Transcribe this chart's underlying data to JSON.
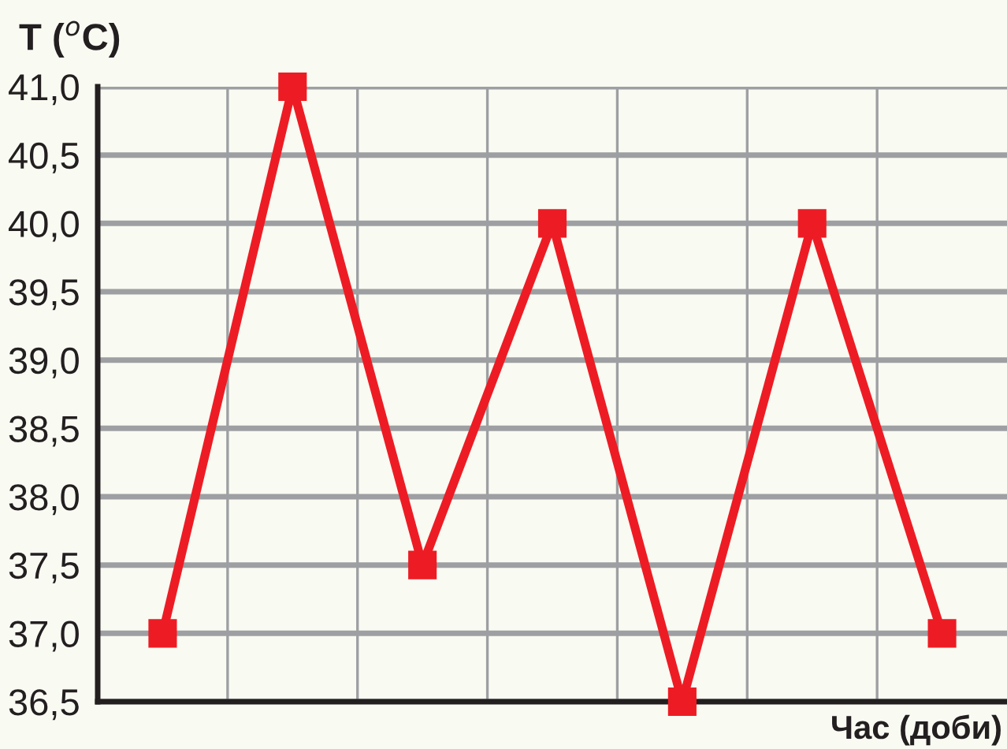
{
  "chart_data": {
    "type": "line",
    "xlabel": "Час (доби)",
    "ylabel": "T ($^{o}$C)",
    "categories": [
      null,
      null,
      null,
      null,
      null,
      null,
      null
    ],
    "series": [
      {
        "color": "#ed1c24",
        "values": [
          37.0,
          41.0,
          37.5,
          40.0,
          36.5,
          40.0,
          37.0
        ]
      }
    ],
    "ylim": [
      36.5,
      41.0
    ],
    "yticks": [
      {
        "value": 36.5,
        "label": "36,5"
      },
      {
        "value": 37.0,
        "label": "37,0"
      },
      {
        "value": 37.5,
        "label": "37,5"
      },
      {
        "value": 38.0,
        "label": "38,0"
      },
      {
        "value": 38.5,
        "label": "38,5"
      },
      {
        "value": 39.0,
        "label": "39,0"
      },
      {
        "value": 39.5,
        "label": "39,5"
      },
      {
        "value": 40.0,
        "label": "40,0"
      },
      {
        "value": 40.5,
        "label": "40,5"
      },
      {
        "value": 41.0,
        "label": "41,0"
      }
    ],
    "grid": true,
    "marker": "square",
    "line_style": "solid",
    "tick_labels": "y",
    "legend": false
  }
}
